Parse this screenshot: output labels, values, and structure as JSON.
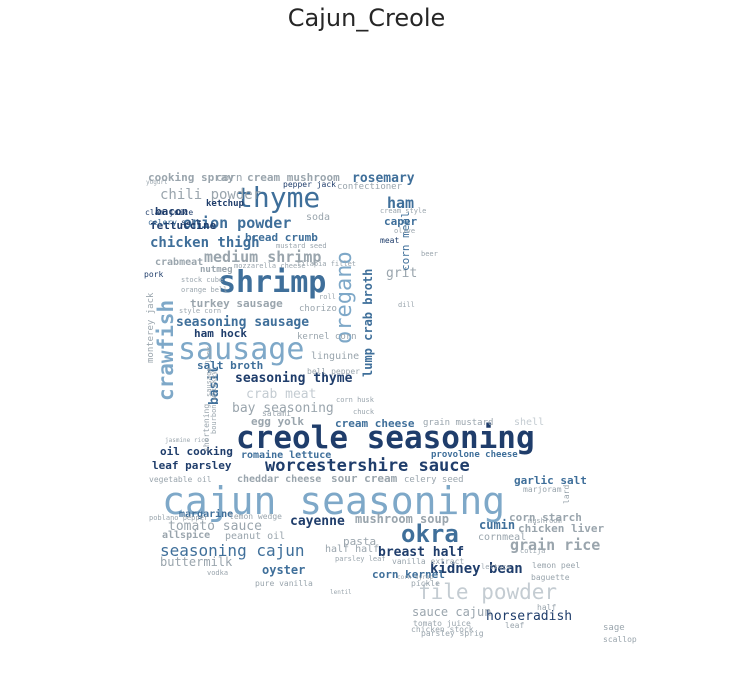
{
  "title": "Cajun_Creole",
  "colors": {
    "dark": "#1f3d6b",
    "mid": "#3f6f9a",
    "light": "#7ea8c8",
    "gray": "#9aa5ad",
    "pale": "#c4ccd2"
  },
  "words": [
    [
      "cajun seasoning",
      162,
      482,
      38,
      "light",
      0,
      0
    ],
    [
      "creole seasoning",
      236,
      423,
      31,
      "dark",
      0,
      1
    ],
    [
      "sausage",
      178,
      335,
      30,
      "light",
      0,
      0
    ],
    [
      "shrimp",
      218,
      268,
      30,
      "mid",
      0,
      1
    ],
    [
      "thyme",
      236,
      184,
      28,
      "mid",
      0,
      0
    ],
    [
      "worcestershire sauce",
      265,
      458,
      17,
      "dark",
      0,
      1
    ],
    [
      "okra",
      401,
      522,
      24,
      "mid",
      0,
      1
    ],
    [
      "file powder",
      418,
      582,
      21,
      "pale",
      0,
      0
    ],
    [
      "oregano",
      334,
      322,
      22,
      "light",
      1,
      0
    ],
    [
      "crawfish",
      156,
      380,
      21,
      "light",
      1,
      1
    ],
    [
      "seasoning cajun",
      160,
      543,
      16,
      "mid",
      0,
      0
    ],
    [
      "onion powder",
      183,
      216,
      15,
      "mid",
      0,
      1
    ],
    [
      "medium shrimp",
      204,
      250,
      15,
      "gray",
      0,
      1
    ],
    [
      "seasoning sausage",
      176,
      316,
      13,
      "mid",
      0,
      1
    ],
    [
      "seasoning thyme",
      235,
      372,
      13,
      "dark",
      0,
      1
    ],
    [
      "kidney bean",
      430,
      562,
      14,
      "dark",
      0,
      1
    ],
    [
      "grain rice",
      510,
      538,
      15,
      "gray",
      0,
      1
    ],
    [
      "chili powder",
      160,
      188,
      14,
      "gray",
      0,
      0
    ],
    [
      "chicken thigh",
      150,
      236,
      14,
      "mid",
      0,
      1
    ],
    [
      "bay seasoning",
      232,
      402,
      13,
      "gray",
      0,
      0
    ],
    [
      "crab meat",
      246,
      388,
      13,
      "pale",
      0,
      0
    ],
    [
      "cayenne",
      290,
      515,
      13,
      "dark",
      0,
      1
    ],
    [
      "tomato sauce",
      168,
      520,
      13,
      "gray",
      0,
      0
    ],
    [
      "sauce cajun",
      412,
      606,
      12,
      "gray",
      0,
      0
    ],
    [
      "horseradish",
      486,
      610,
      13,
      "dark",
      0,
      0
    ],
    [
      "mushroom soup",
      355,
      513,
      12,
      "gray",
      0,
      1
    ],
    [
      "breast half",
      378,
      546,
      13,
      "dark",
      0,
      1
    ],
    [
      "rosemary",
      352,
      172,
      13,
      "mid",
      0,
      1
    ],
    [
      "cooking spray",
      148,
      172,
      11,
      "gray",
      0,
      1
    ],
    [
      "cream mushroom",
      247,
      172,
      11,
      "gray",
      0,
      1
    ],
    [
      "corn",
      216,
      172,
      11,
      "gray",
      0,
      0
    ],
    [
      "fettuccine",
      150,
      220,
      11,
      "dark",
      0,
      1
    ],
    [
      "bread crumb",
      245,
      232,
      11,
      "mid",
      0,
      1
    ],
    [
      "turkey sausage",
      190,
      298,
      11,
      "gray",
      0,
      1
    ],
    [
      "leaf parsley",
      152,
      460,
      11,
      "dark",
      0,
      1
    ],
    [
      "oil cooking",
      160,
      446,
      11,
      "dark",
      0,
      1
    ],
    [
      "romaine lettuce",
      241,
      451,
      10,
      "mid",
      0,
      1
    ],
    [
      "cream cheese",
      335,
      418,
      11,
      "mid",
      0,
      1
    ],
    [
      "egg yolk",
      251,
      416,
      11,
      "gray",
      0,
      1
    ],
    [
      "sour cream",
      331,
      473,
      11,
      "gray",
      0,
      1
    ],
    [
      "cheddar cheese",
      237,
      475,
      10,
      "gray",
      0,
      1
    ],
    [
      "corn starch",
      509,
      512,
      11,
      "gray",
      0,
      1
    ],
    [
      "chicken liver",
      518,
      523,
      11,
      "gray",
      0,
      1
    ],
    [
      "garlic salt",
      514,
      475,
      11,
      "mid",
      0,
      1
    ],
    [
      "cumin",
      479,
      519,
      12,
      "mid",
      0,
      1
    ],
    [
      "buttermilk",
      160,
      556,
      12,
      "gray",
      0,
      0
    ],
    [
      "oyster",
      262,
      564,
      12,
      "mid",
      0,
      1
    ],
    [
      "ham",
      387,
      196,
      15,
      "mid",
      0,
      1
    ],
    [
      "caper",
      384,
      216,
      11,
      "mid",
      0,
      1
    ],
    [
      "grit",
      386,
      267,
      13,
      "gray",
      0,
      0
    ],
    [
      "salt broth",
      197,
      360,
      11,
      "mid",
      0,
      1
    ],
    [
      "ham hock",
      194,
      328,
      11,
      "dark",
      0,
      1
    ],
    [
      "basil",
      208,
      392,
      13,
      "mid",
      1,
      1
    ],
    [
      "bacon",
      155,
      206,
      11,
      "dark",
      0,
      1
    ],
    [
      "ketchup",
      206,
      200,
      9,
      "dark",
      0,
      1
    ],
    [
      "soda",
      306,
      213,
      10,
      "gray",
      0,
      0
    ],
    [
      "corn kernel",
      372,
      569,
      11,
      "mid",
      0,
      1
    ],
    [
      "lump crab broth",
      362,
      365,
      12,
      "mid",
      1,
      1
    ],
    [
      "corn meal",
      400,
      260,
      11,
      "mid",
      1,
      0
    ],
    [
      "chorizo",
      299,
      305,
      9,
      "gray",
      0,
      0
    ],
    [
      "linguine",
      311,
      352,
      10,
      "gray",
      0,
      0
    ],
    [
      "crabmeat",
      155,
      258,
      10,
      "gray",
      0,
      1
    ],
    [
      "nutmeg",
      200,
      266,
      9,
      "gray",
      0,
      1
    ],
    [
      "margarine",
      179,
      510,
      10,
      "mid",
      0,
      1
    ],
    [
      "allspice",
      162,
      531,
      10,
      "gray",
      0,
      1
    ],
    [
      "peanut oil",
      225,
      532,
      10,
      "gray",
      0,
      0
    ],
    [
      "pasta",
      343,
      536,
      11,
      "gray",
      0,
      0
    ],
    [
      "half half",
      325,
      545,
      10,
      "gray",
      0,
      0
    ],
    [
      "cornmeal",
      478,
      533,
      10,
      "gray",
      0,
      0
    ],
    [
      "provolone cheese",
      431,
      451,
      9,
      "mid",
      0,
      1
    ],
    [
      "celery seed",
      404,
      476,
      9,
      "gray",
      0,
      0
    ],
    [
      "grain mustard",
      423,
      419,
      9,
      "gray",
      0,
      0
    ],
    [
      "shell",
      514,
      418,
      10,
      "pale",
      0,
      0
    ],
    [
      "confectioner",
      337,
      183,
      9,
      "gray",
      0,
      0
    ],
    [
      "pepper jack",
      283,
      181,
      8,
      "dark",
      0,
      0
    ],
    [
      "celery",
      148,
      219,
      8,
      "mid",
      0,
      0
    ],
    [
      "salt",
      181,
      219,
      8,
      "dark",
      0,
      0
    ],
    [
      "clam juice",
      145,
      209,
      8,
      "dark",
      0,
      0
    ],
    [
      "cream style",
      380,
      208,
      7,
      "gray",
      0,
      0
    ],
    [
      "meat",
      380,
      237,
      8,
      "dark",
      0,
      0
    ],
    [
      "mustard seed",
      276,
      243,
      7,
      "gray",
      0,
      0
    ],
    [
      "stock cube",
      181,
      277,
      7,
      "gray",
      0,
      0
    ],
    [
      "monterey jack",
      147,
      354,
      9,
      "gray",
      1,
      0
    ],
    [
      "kernel corn",
      297,
      333,
      9,
      "gray",
      0,
      0
    ],
    [
      "pork",
      144,
      271,
      8,
      "dark",
      0,
      0
    ],
    [
      "style corn",
      179,
      308,
      7,
      "gray",
      0,
      0
    ],
    [
      "vegetable oil",
      149,
      476,
      8,
      "gray",
      0,
      0
    ],
    [
      "poblano pepper",
      149,
      515,
      7,
      "gray",
      0,
      0
    ],
    [
      "lemon wedge",
      229,
      513,
      8,
      "gray",
      0,
      0
    ],
    [
      "pure vanilla",
      255,
      580,
      8,
      "gray",
      0,
      0
    ],
    [
      "vodka",
      207,
      570,
      7,
      "gray",
      0,
      0
    ],
    [
      "parsley leaf",
      335,
      556,
      7,
      "gray",
      0,
      0
    ],
    [
      "vanilla extract",
      392,
      558,
      8,
      "gray",
      0,
      0
    ],
    [
      "pickle",
      411,
      580,
      8,
      "gray",
      0,
      0
    ],
    [
      "baguette",
      531,
      574,
      8,
      "gray",
      0,
      0
    ],
    [
      "lemon peel",
      532,
      562,
      8,
      "gray",
      0,
      0
    ],
    [
      "half",
      537,
      604,
      8,
      "gray",
      0,
      0
    ],
    [
      "sage",
      603,
      624,
      9,
      "gray",
      0,
      0
    ],
    [
      "scallop",
      603,
      636,
      8,
      "gray",
      0,
      0
    ],
    [
      "chicken stock",
      411,
      626,
      8,
      "gray",
      0,
      0
    ],
    [
      "parsley sprig",
      421,
      630,
      8,
      "gray",
      0,
      0
    ],
    [
      "tomato juice",
      413,
      620,
      8,
      "gray",
      0,
      0
    ],
    [
      "leaf",
      505,
      622,
      8,
      "gray",
      0,
      0
    ],
    [
      "lard",
      563,
      496,
      8,
      "gray",
      1,
      0
    ],
    [
      "marjoram",
      523,
      486,
      8,
      "gray",
      0,
      0
    ],
    [
      "cotija",
      520,
      548,
      7,
      "gray",
      0,
      0
    ],
    [
      "beer",
      421,
      251,
      7,
      "gray",
      0,
      0
    ],
    [
      "dill",
      398,
      302,
      7,
      "gray",
      0,
      0
    ],
    [
      "roll",
      319,
      294,
      7,
      "gray",
      0,
      0
    ],
    [
      "chuck",
      353,
      409,
      7,
      "gray",
      0,
      0
    ],
    [
      "mushroom",
      528,
      518,
      7,
      "gray",
      0,
      0
    ],
    [
      "shortening",
      203,
      444,
      8,
      "gray",
      1,
      0
    ],
    [
      "bourbon whiskey",
      211,
      427,
      7,
      "gray",
      1,
      0
    ],
    [
      "sausage link",
      206,
      390,
      7,
      "gray",
      1,
      0
    ],
    [
      "mozzarella cheese",
      234,
      263,
      7,
      "gray",
      0,
      0
    ],
    [
      "tilapia fillet",
      297,
      261,
      7,
      "gray",
      0,
      0
    ],
    [
      "orange bell",
      181,
      287,
      7,
      "gray",
      0,
      0
    ],
    [
      "bell pepper",
      307,
      368,
      8,
      "gray",
      0,
      0
    ],
    [
      "salami",
      262,
      410,
      8,
      "gray",
      0,
      0
    ],
    [
      "lettuce",
      481,
      564,
      7,
      "gray",
      0,
      0
    ],
    [
      "olive",
      394,
      228,
      7,
      "gray",
      0,
      0
    ],
    [
      "corn husk",
      336,
      397,
      7,
      "gray",
      0,
      0
    ],
    [
      "yogurt",
      146,
      180,
      6,
      "gray",
      0,
      0
    ],
    [
      "jasmine rice",
      165,
      438,
      6,
      "gray",
      0,
      0
    ],
    [
      "corn syrup",
      397,
      575,
      6,
      "gray",
      0,
      0
    ],
    [
      "lentil",
      330,
      590,
      6,
      "gray",
      0,
      0
    ]
  ]
}
